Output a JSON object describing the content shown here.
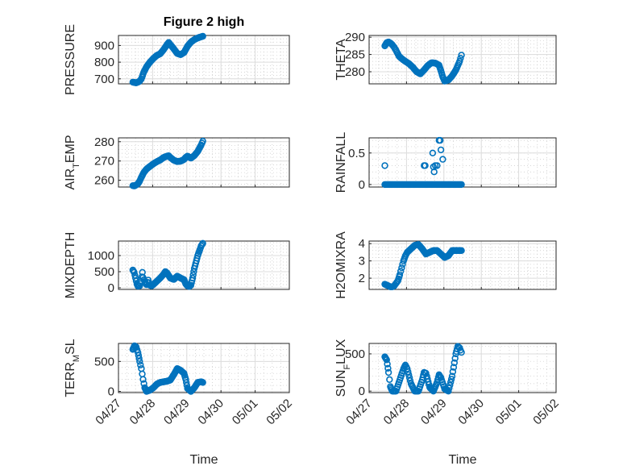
{
  "figure": {
    "title": "Figure 2 high"
  },
  "colors": {
    "series": "#0072BD",
    "axis": "#262626",
    "grid": "#dcdcdc"
  },
  "chart_data": [
    {
      "type": "scatter",
      "title": "Figure 2 high",
      "ylabel": "PRESSURE",
      "xlabel": "",
      "xlim": [
        "04/27",
        "05/02"
      ],
      "ylim": [
        670,
        960
      ],
      "yticks": [
        700,
        800,
        900
      ],
      "yticklabels": [
        "700",
        "800",
        "900"
      ],
      "xtick_labels_visible": false,
      "points": [
        [
          0.0,
          680
        ],
        [
          0.05,
          678
        ],
        [
          0.1,
          676
        ],
        [
          0.15,
          680
        ],
        [
          0.2,
          686
        ],
        [
          0.25,
          700
        ],
        [
          0.32,
          740
        ],
        [
          0.4,
          772
        ],
        [
          0.5,
          800
        ],
        [
          0.6,
          822
        ],
        [
          0.7,
          840
        ],
        [
          0.8,
          850
        ],
        [
          0.9,
          875
        ],
        [
          1.0,
          905
        ],
        [
          1.05,
          918
        ],
        [
          1.1,
          905
        ],
        [
          1.2,
          880
        ],
        [
          1.3,
          852
        ],
        [
          1.4,
          845
        ],
        [
          1.5,
          858
        ],
        [
          1.6,
          895
        ],
        [
          1.7,
          920
        ],
        [
          1.8,
          935
        ],
        [
          1.9,
          945
        ],
        [
          2.0,
          952
        ],
        [
          2.05,
          955
        ]
      ]
    },
    {
      "type": "scatter",
      "title": "",
      "ylabel": "THETA",
      "xlabel": "",
      "xlim": [
        "04/27",
        "05/02"
      ],
      "ylim": [
        276.5,
        290.5
      ],
      "yticks": [
        280,
        285,
        290
      ],
      "yticklabels": [
        "280",
        "285",
        "290"
      ],
      "xtick_labels_visible": false,
      "points": [
        [
          0.0,
          287.5
        ],
        [
          0.05,
          288.4
        ],
        [
          0.1,
          288.6
        ],
        [
          0.15,
          288.3
        ],
        [
          0.2,
          287.8
        ],
        [
          0.25,
          287.1
        ],
        [
          0.3,
          286.2
        ],
        [
          0.38,
          284.5
        ],
        [
          0.45,
          283.8
        ],
        [
          0.55,
          283.0
        ],
        [
          0.65,
          282.3
        ],
        [
          0.75,
          281.3
        ],
        [
          0.85,
          280.0
        ],
        [
          0.95,
          279.4
        ],
        [
          1.05,
          280.5
        ],
        [
          1.15,
          281.8
        ],
        [
          1.25,
          282.6
        ],
        [
          1.35,
          282.5
        ],
        [
          1.45,
          281.9
        ],
        [
          1.5,
          280.3
        ],
        [
          1.55,
          278.5
        ],
        [
          1.6,
          277.3
        ],
        [
          1.7,
          277.6
        ],
        [
          1.8,
          278.8
        ],
        [
          1.9,
          280.5
        ],
        [
          2.0,
          283.0
        ],
        [
          2.05,
          284.8
        ]
      ]
    },
    {
      "type": "scatter",
      "title": "",
      "ylabel": "AIR_TEMP",
      "xlabel": "",
      "xlim": [
        "04/27",
        "05/02"
      ],
      "ylim": [
        256.5,
        282
      ],
      "yticks": [
        260,
        270,
        280
      ],
      "yticklabels": [
        "260",
        "270",
        "280"
      ],
      "xtick_labels_visible": false,
      "points": [
        [
          0.0,
          257.2
        ],
        [
          0.05,
          257.1
        ],
        [
          0.1,
          257.6
        ],
        [
          0.15,
          258.2
        ],
        [
          0.2,
          259.6
        ],
        [
          0.25,
          261.5
        ],
        [
          0.32,
          264.0
        ],
        [
          0.4,
          265.8
        ],
        [
          0.5,
          267.2
        ],
        [
          0.6,
          268.5
        ],
        [
          0.7,
          269.6
        ],
        [
          0.8,
          270.5
        ],
        [
          0.9,
          271.8
        ],
        [
          1.0,
          272.5
        ],
        [
          1.05,
          272.7
        ],
        [
          1.1,
          271.8
        ],
        [
          1.2,
          270.4
        ],
        [
          1.3,
          269.7
        ],
        [
          1.4,
          269.9
        ],
        [
          1.5,
          270.8
        ],
        [
          1.55,
          271.9
        ],
        [
          1.6,
          272.5
        ],
        [
          1.7,
          271.5
        ],
        [
          1.8,
          272.8
        ],
        [
          1.9,
          275.0
        ],
        [
          2.0,
          278.3
        ],
        [
          2.05,
          280.3
        ]
      ]
    },
    {
      "type": "scatter",
      "title": "",
      "ylabel": "RAINFALL",
      "xlabel": "",
      "xlim": [
        "04/27",
        "05/02"
      ],
      "ylim": [
        -0.04,
        0.74
      ],
      "yticks": [
        0,
        0.5
      ],
      "yticklabels": [
        "0",
        "0.5"
      ],
      "xtick_labels_visible": false,
      "points": [
        [
          0.0,
          0.3
        ],
        [
          0.0,
          0
        ],
        [
          0.1,
          0
        ],
        [
          0.2,
          0
        ],
        [
          0.3,
          0
        ],
        [
          0.4,
          0
        ],
        [
          0.5,
          0
        ],
        [
          0.6,
          0
        ],
        [
          0.7,
          0
        ],
        [
          0.8,
          0
        ],
        [
          0.9,
          0
        ],
        [
          1.0,
          0
        ],
        [
          1.05,
          0.3
        ],
        [
          1.08,
          0.3
        ],
        [
          1.1,
          0
        ],
        [
          1.2,
          0
        ],
        [
          1.28,
          0.5
        ],
        [
          1.3,
          0.28
        ],
        [
          1.32,
          0.2
        ],
        [
          1.35,
          0.3
        ],
        [
          1.4,
          0.3
        ],
        [
          1.45,
          0.7
        ],
        [
          1.48,
          0.7
        ],
        [
          1.5,
          0.55
        ],
        [
          1.55,
          0.4
        ],
        [
          1.6,
          0
        ],
        [
          1.7,
          0
        ],
        [
          1.8,
          0
        ],
        [
          1.9,
          0
        ],
        [
          2.0,
          0
        ],
        [
          2.05,
          0
        ]
      ]
    },
    {
      "type": "scatter",
      "title": "",
      "ylabel": "MIXDEPTH",
      "xlabel": "",
      "xlim": [
        "04/27",
        "05/02"
      ],
      "ylim": [
        -50,
        1450
      ],
      "yticks": [
        0,
        500,
        1000
      ],
      "yticklabels": [
        "0",
        "500",
        "1000"
      ],
      "xtick_labels_visible": false,
      "points": [
        [
          0.0,
          550
        ],
        [
          0.04,
          480
        ],
        [
          0.08,
          300
        ],
        [
          0.12,
          120
        ],
        [
          0.15,
          50
        ],
        [
          0.2,
          60
        ],
        [
          0.25,
          200
        ],
        [
          0.28,
          480
        ],
        [
          0.3,
          320
        ],
        [
          0.35,
          180
        ],
        [
          0.4,
          100
        ],
        [
          0.45,
          240
        ],
        [
          0.5,
          80
        ],
        [
          0.55,
          60
        ],
        [
          0.6,
          100
        ],
        [
          0.7,
          200
        ],
        [
          0.8,
          300
        ],
        [
          0.9,
          420
        ],
        [
          0.95,
          500
        ],
        [
          1.0,
          460
        ],
        [
          1.1,
          300
        ],
        [
          1.2,
          260
        ],
        [
          1.3,
          360
        ],
        [
          1.4,
          300
        ],
        [
          1.5,
          250
        ],
        [
          1.55,
          120
        ],
        [
          1.6,
          60
        ],
        [
          1.65,
          40
        ],
        [
          1.7,
          80
        ],
        [
          1.75,
          300
        ],
        [
          1.8,
          600
        ],
        [
          1.9,
          1000
        ],
        [
          2.0,
          1300
        ],
        [
          2.05,
          1380
        ]
      ]
    },
    {
      "type": "scatter",
      "title": "",
      "ylabel": "H2OMIXRA",
      "xlabel": "",
      "xlim": [
        "04/27",
        "05/02"
      ],
      "ylim": [
        1.35,
        4.15
      ],
      "yticks": [
        2,
        3,
        4
      ],
      "yticklabels": [
        "2",
        "3",
        "4"
      ],
      "xtick_labels_visible": false,
      "points": [
        [
          0.0,
          1.65
        ],
        [
          0.05,
          1.6
        ],
        [
          0.1,
          1.55
        ],
        [
          0.15,
          1.5
        ],
        [
          0.2,
          1.5
        ],
        [
          0.25,
          1.55
        ],
        [
          0.3,
          1.7
        ],
        [
          0.35,
          1.85
        ],
        [
          0.4,
          2.2
        ],
        [
          0.45,
          2.6
        ],
        [
          0.5,
          3.0
        ],
        [
          0.55,
          3.3
        ],
        [
          0.6,
          3.5
        ],
        [
          0.7,
          3.7
        ],
        [
          0.8,
          3.9
        ],
        [
          0.9,
          3.95
        ],
        [
          1.0,
          3.7
        ],
        [
          1.1,
          3.4
        ],
        [
          1.2,
          3.5
        ],
        [
          1.3,
          3.6
        ],
        [
          1.4,
          3.6
        ],
        [
          1.5,
          3.4
        ],
        [
          1.6,
          3.2
        ],
        [
          1.7,
          3.3
        ],
        [
          1.8,
          3.6
        ],
        [
          1.9,
          3.6
        ],
        [
          2.0,
          3.6
        ],
        [
          2.05,
          3.6
        ]
      ]
    },
    {
      "type": "scatter",
      "title": "",
      "ylabel": "TERR_MSL",
      "xlabel": "Time",
      "xlim": [
        "04/27",
        "05/02"
      ],
      "ylim": [
        -20,
        800
      ],
      "yticks": [
        0,
        500
      ],
      "yticklabels": [
        "0",
        "500"
      ],
      "xtick_labels_visible": true,
      "xticks": [
        "04/27",
        "04/28",
        "04/29",
        "04/30",
        "05/01",
        "05/02"
      ],
      "points": [
        [
          0.0,
          700
        ],
        [
          0.05,
          760
        ],
        [
          0.1,
          740
        ],
        [
          0.15,
          650
        ],
        [
          0.2,
          500
        ],
        [
          0.25,
          380
        ],
        [
          0.3,
          200
        ],
        [
          0.35,
          60
        ],
        [
          0.4,
          0
        ],
        [
          0.5,
          20
        ],
        [
          0.6,
          60
        ],
        [
          0.7,
          120
        ],
        [
          0.8,
          150
        ],
        [
          0.9,
          160
        ],
        [
          1.0,
          170
        ],
        [
          1.1,
          190
        ],
        [
          1.2,
          280
        ],
        [
          1.3,
          380
        ],
        [
          1.4,
          350
        ],
        [
          1.5,
          300
        ],
        [
          1.55,
          200
        ],
        [
          1.6,
          50
        ],
        [
          1.7,
          0
        ],
        [
          1.8,
          60
        ],
        [
          1.9,
          150
        ],
        [
          2.0,
          160
        ],
        [
          2.05,
          150
        ]
      ]
    },
    {
      "type": "scatter",
      "title": "",
      "ylabel": "SUN_FLUX",
      "xlabel": "Time",
      "xlim": [
        "04/27",
        "05/02"
      ],
      "ylim": [
        -20,
        640
      ],
      "yticks": [
        0,
        500
      ],
      "yticklabels": [
        "0",
        "500"
      ],
      "xtick_labels_visible": true,
      "xticks": [
        "04/27",
        "04/28",
        "04/29",
        "04/30",
        "05/01",
        "05/02"
      ],
      "points": [
        [
          0.0,
          460
        ],
        [
          0.05,
          420
        ],
        [
          0.1,
          250
        ],
        [
          0.15,
          60
        ],
        [
          0.2,
          0
        ],
        [
          0.3,
          0
        ],
        [
          0.4,
          150
        ],
        [
          0.5,
          300
        ],
        [
          0.55,
          350
        ],
        [
          0.6,
          300
        ],
        [
          0.7,
          100
        ],
        [
          0.8,
          0
        ],
        [
          0.9,
          0
        ],
        [
          1.0,
          150
        ],
        [
          1.05,
          250
        ],
        [
          1.1,
          240
        ],
        [
          1.2,
          50
        ],
        [
          1.3,
          0
        ],
        [
          1.4,
          120
        ],
        [
          1.45,
          220
        ],
        [
          1.5,
          180
        ],
        [
          1.6,
          30
        ],
        [
          1.7,
          0
        ],
        [
          1.8,
          200
        ],
        [
          1.9,
          500
        ],
        [
          1.95,
          600
        ],
        [
          2.0,
          580
        ],
        [
          2.05,
          520
        ]
      ]
    }
  ]
}
